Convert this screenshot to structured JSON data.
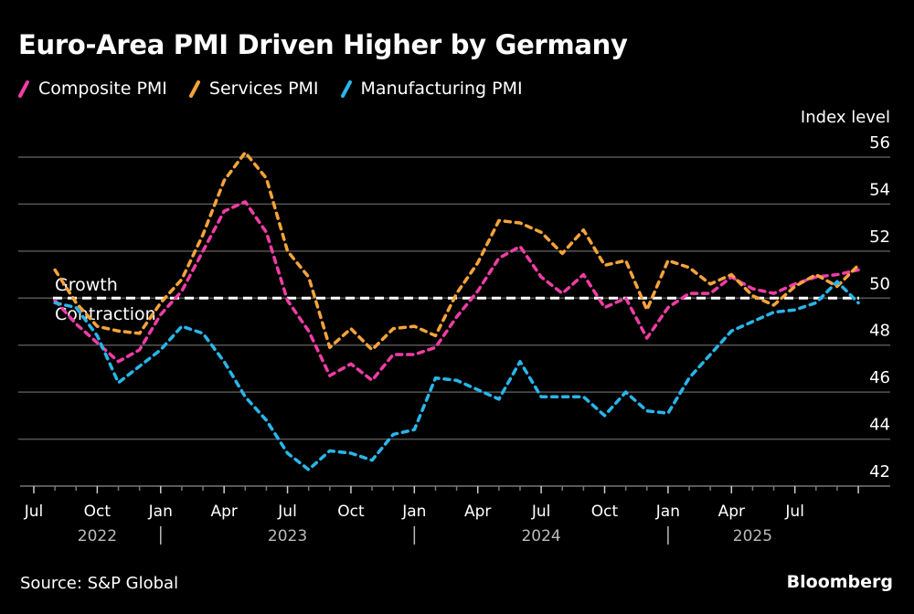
{
  "title": "Euro-Area PMI Driven Higher by Germany",
  "source": "Source: S&P Global",
  "brand": "Bloomberg",
  "annotations": {
    "above": "Growth",
    "below": "Contraction",
    "threshold": 50
  },
  "colors": {
    "composite": "#f23da6",
    "services": "#f6a43a",
    "manufacturing": "#29b6ea",
    "threshold": "#ffffff",
    "grid": "#555555"
  },
  "chart_data": {
    "type": "line",
    "title": "Euro-Area PMI Driven Higher by Germany",
    "xlabel": "",
    "ylabel": "Index level",
    "ylim": [
      42,
      56
    ],
    "yticks": [
      42,
      44,
      46,
      48,
      50,
      52,
      54,
      56
    ],
    "grid": true,
    "legend": "top-left",
    "x": [
      "2022-07",
      "2022-08",
      "2022-09",
      "2022-10",
      "2022-11",
      "2022-12",
      "2023-01",
      "2023-02",
      "2023-03",
      "2023-04",
      "2023-05",
      "2023-06",
      "2023-07",
      "2023-08",
      "2023-09",
      "2023-10",
      "2023-11",
      "2023-12",
      "2024-01",
      "2024-02",
      "2024-03",
      "2024-04",
      "2024-05",
      "2024-06",
      "2024-07",
      "2024-08",
      "2024-09",
      "2024-10",
      "2024-11",
      "2024-12",
      "2025-01",
      "2025-02",
      "2025-03",
      "2025-04",
      "2025-05",
      "2025-06",
      "2025-07",
      "2025-08",
      "2025-09"
    ],
    "xticks": [
      {
        "label": "Jul",
        "month": "2022-07"
      },
      {
        "label": "Oct",
        "month": "2022-10"
      },
      {
        "label": "Jan",
        "month": "2023-01"
      },
      {
        "label": "Apr",
        "month": "2023-04"
      },
      {
        "label": "Jul",
        "month": "2023-07"
      },
      {
        "label": "Oct",
        "month": "2023-10"
      },
      {
        "label": "Jan",
        "month": "2024-01"
      },
      {
        "label": "Apr",
        "month": "2024-04"
      },
      {
        "label": "Jul",
        "month": "2024-07"
      },
      {
        "label": "Oct",
        "month": "2024-10"
      },
      {
        "label": "Jan",
        "month": "2025-01"
      },
      {
        "label": "Apr",
        "month": "2025-04"
      },
      {
        "label": "Jul",
        "month": "2025-07"
      }
    ],
    "year_labels": [
      {
        "label": "2022",
        "center_month": "2022-10"
      },
      {
        "label": "2023",
        "center_month": "2023-07"
      },
      {
        "label": "2024",
        "center_month": "2024-07"
      },
      {
        "label": "2025",
        "center_month": "2025-05"
      }
    ],
    "year_separators": [
      "2023-01",
      "2024-01",
      "2025-01"
    ],
    "series": [
      {
        "name": "Composite PMI",
        "key": "composite",
        "style": "dashed",
        "values": [
          49.9,
          48.9,
          48.1,
          47.3,
          47.8,
          49.3,
          50.3,
          52.0,
          53.7,
          54.1,
          52.8,
          49.9,
          48.6,
          46.7,
          47.2,
          46.5,
          47.6,
          47.6,
          47.9,
          49.2,
          50.3,
          51.7,
          52.2,
          50.9,
          50.2,
          51.0,
          49.6,
          50.0,
          48.3,
          49.6,
          50.2,
          50.2,
          50.9,
          50.4,
          50.2,
          50.6,
          50.9,
          51.0,
          51.2
        ]
      },
      {
        "name": "Services PMI",
        "key": "services",
        "style": "dashed",
        "values": [
          51.2,
          49.8,
          48.8,
          48.6,
          48.5,
          49.8,
          50.8,
          52.7,
          55.0,
          56.2,
          55.1,
          52.0,
          50.9,
          47.9,
          48.7,
          47.8,
          48.7,
          48.8,
          48.4,
          50.2,
          51.5,
          53.3,
          53.2,
          52.8,
          51.9,
          52.9,
          51.4,
          51.6,
          49.5,
          51.6,
          51.3,
          50.6,
          51.0,
          50.1,
          49.7,
          50.5,
          51.0,
          50.5,
          51.4
        ]
      },
      {
        "name": "Manufacturing PMI",
        "key": "manufacturing",
        "style": "dashed",
        "values": [
          49.8,
          49.6,
          48.4,
          46.4,
          47.1,
          47.8,
          48.8,
          48.5,
          47.3,
          45.8,
          44.8,
          43.4,
          42.7,
          43.5,
          43.4,
          43.1,
          44.2,
          44.4,
          46.6,
          46.5,
          46.1,
          45.7,
          47.3,
          45.8,
          45.8,
          45.8,
          45.0,
          46.0,
          45.2,
          45.1,
          46.6,
          47.6,
          48.6,
          49.0,
          49.4,
          49.5,
          49.8,
          50.7,
          49.8
        ]
      }
    ]
  }
}
